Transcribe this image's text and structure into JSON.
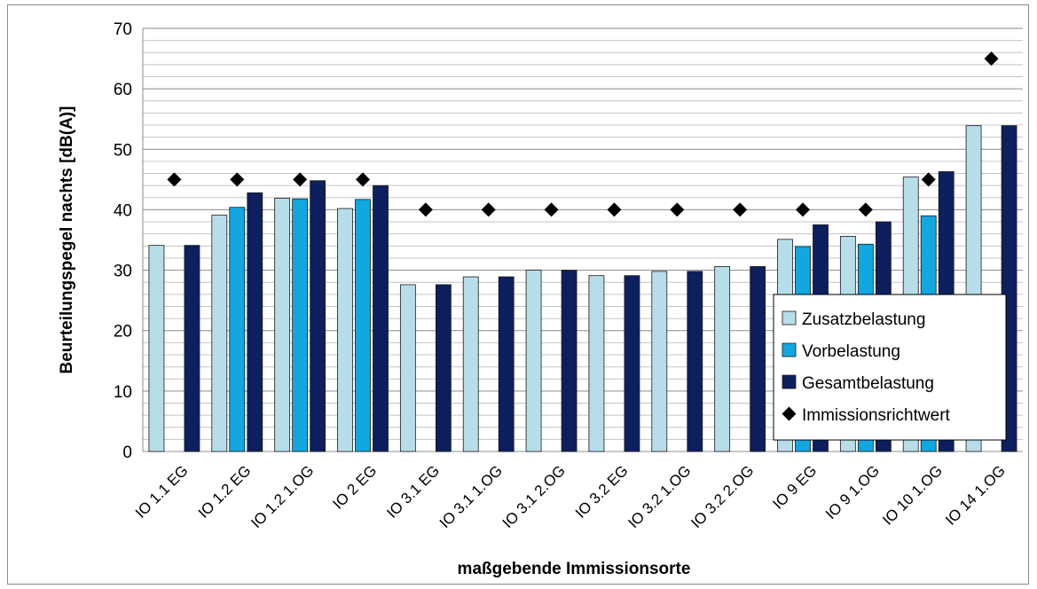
{
  "chart_data": {
    "type": "bar",
    "title": "",
    "xlabel": "maßgebende Immissionsorte",
    "ylabel": "Beurteilungspegel nachts [dB(A)]",
    "ylim": [
      0,
      70
    ],
    "yticks": [
      0,
      10,
      20,
      30,
      40,
      50,
      60,
      70
    ],
    "grid": true,
    "legend_position": "right",
    "categories": [
      "IO 1.1 EG",
      "IO 1.2 EG",
      "IO 1.2 1.OG",
      "IO 2 EG",
      "IO 3.1 EG",
      "IO 3.1 1.OG",
      "IO 3.1 2.OG",
      "IO 3.2 EG",
      "IO 3.2 1.OG",
      "IO 3.2 2.OG",
      "IO 9 EG",
      "IO 9 1.OG",
      "IO 10 1.OG",
      "IO 14 1.OG"
    ],
    "series": [
      {
        "name": "Zusatzbelastung",
        "kind": "bar",
        "color": "#b7dde8",
        "values": [
          34.1,
          39.1,
          41.9,
          40.2,
          27.6,
          28.9,
          30.0,
          29.1,
          29.8,
          30.6,
          35.1,
          35.6,
          45.4,
          53.9
        ]
      },
      {
        "name": "Vorbelastung",
        "kind": "bar",
        "color": "#11a7e0",
        "values": [
          null,
          40.4,
          41.8,
          41.7,
          null,
          null,
          null,
          null,
          null,
          null,
          33.9,
          34.3,
          39.0,
          null
        ]
      },
      {
        "name": "Gesamtbelastung",
        "kind": "bar",
        "color": "#0d1f5e",
        "values": [
          34.1,
          42.8,
          44.8,
          44.0,
          27.6,
          28.9,
          30.0,
          29.1,
          29.8,
          30.6,
          37.5,
          38.0,
          46.3,
          53.9
        ]
      },
      {
        "name": "Immissionsrichtwert",
        "kind": "marker",
        "color": "#000000",
        "values": [
          45,
          45,
          45,
          45,
          40,
          40,
          40,
          40,
          40,
          40,
          40,
          40,
          45,
          65
        ]
      }
    ]
  }
}
